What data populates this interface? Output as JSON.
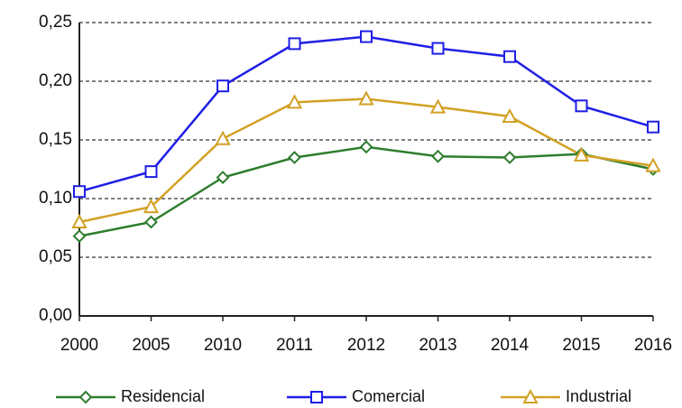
{
  "chart_data": {
    "type": "line",
    "categories": [
      "2000",
      "2005",
      "2010",
      "2011",
      "2012",
      "2013",
      "2014",
      "2015",
      "2016"
    ],
    "series": [
      {
        "name": "Residencial",
        "color": "#2e7d2e",
        "marker": "diamond",
        "values": [
          0.068,
          0.08,
          0.118,
          0.135,
          0.144,
          0.136,
          0.135,
          0.138,
          0.125
        ]
      },
      {
        "name": "Comercial",
        "color": "#1f1fe6",
        "marker": "square",
        "values": [
          0.106,
          0.123,
          0.196,
          0.232,
          0.238,
          0.228,
          0.221,
          0.179,
          0.161
        ]
      },
      {
        "name": "Industrial",
        "color": "#d2a124",
        "marker": "triangle",
        "values": [
          0.08,
          0.093,
          0.151,
          0.182,
          0.185,
          0.178,
          0.17,
          0.137,
          0.128
        ]
      }
    ],
    "ylim": [
      0,
      0.25
    ],
    "yticks": [
      {
        "value": 0,
        "label": "0,00"
      },
      {
        "value": 0.05,
        "label": "0,05"
      },
      {
        "value": 0.1,
        "label": "0,10"
      },
      {
        "value": 0.15,
        "label": "0,15"
      },
      {
        "value": 0.2,
        "label": "0,20"
      },
      {
        "value": 0.25,
        "label": "0,25"
      }
    ],
    "grid": true,
    "legend": "bottom"
  }
}
